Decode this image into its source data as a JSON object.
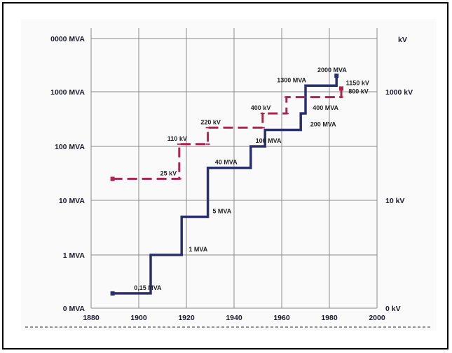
{
  "chart_data": {
    "type": "line",
    "xlim": [
      1880,
      2000
    ],
    "x_ticks": [
      "1880",
      "1900",
      "1920",
      "1940",
      "1960",
      "1980",
      "2000"
    ],
    "y_left_ticks": [
      "0 MVA",
      "1 MVA",
      "10 MVA",
      "100 MVA",
      "1000 MVA",
      "0000 MVA"
    ],
    "y_right_unit": "kV",
    "y_right_ticks": [
      "0 kV",
      "10 kV",
      "1000 kV"
    ],
    "grid": true,
    "series": [
      {
        "values_unit": "MVA",
        "color": "#2c2f6e",
        "style": "solid-step",
        "points": [
          {
            "x": 1889,
            "y": 0.15
          },
          {
            "x": 1905,
            "y": 0.15
          },
          {
            "x": 1905,
            "y": 1
          },
          {
            "x": 1918,
            "y": 1
          },
          {
            "x": 1918,
            "y": 5
          },
          {
            "x": 1929,
            "y": 5
          },
          {
            "x": 1929,
            "y": 40
          },
          {
            "x": 1947,
            "y": 40
          },
          {
            "x": 1947,
            "y": 100
          },
          {
            "x": 1953,
            "y": 100
          },
          {
            "x": 1953,
            "y": 200
          },
          {
            "x": 1968,
            "y": 200
          },
          {
            "x": 1968,
            "y": 400
          },
          {
            "x": 1970,
            "y": 400
          },
          {
            "x": 1970,
            "y": 1300
          },
          {
            "x": 1983,
            "y": 1300
          },
          {
            "x": 1983,
            "y": 2000
          }
        ]
      },
      {
        "values_unit": "kV",
        "color": "#b0234f",
        "style": "dashed-step",
        "points": [
          {
            "x": 1889,
            "y": 25
          },
          {
            "x": 1915,
            "y": 25
          },
          {
            "x": 1917,
            "y": 25
          },
          {
            "x": 1917,
            "y": 110
          },
          {
            "x": 1929,
            "y": 110
          },
          {
            "x": 1929,
            "y": 220
          },
          {
            "x": 1952,
            "y": 220
          },
          {
            "x": 1952,
            "y": 400
          },
          {
            "x": 1962,
            "y": 400
          },
          {
            "x": 1962,
            "y": 800
          },
          {
            "x": 1971,
            "y": 800
          },
          {
            "x": 1985,
            "y": 800
          },
          {
            "x": 1985,
            "y": 1150
          }
        ]
      }
    ],
    "annotations": [
      {
        "text": "0,15 MVA",
        "x": 1898,
        "y": 0.15
      },
      {
        "text": "1 MVA",
        "x": 1921,
        "y": 1
      },
      {
        "text": "5 MVA",
        "x": 1931,
        "y": 5
      },
      {
        "text": "40 MVA",
        "x": 1932,
        "y": 40
      },
      {
        "text": "100 MVA",
        "x": 1949,
        "y": 100
      },
      {
        "text": "200 MVA",
        "x": 1972,
        "y": 200
      },
      {
        "text": "400 MVA",
        "x": 1973,
        "y": 400
      },
      {
        "text": "1300 MVA",
        "x": 1958,
        "y": 1300
      },
      {
        "text": "2000 MVA",
        "x": 1975,
        "y": 2000
      },
      {
        "text": "25 kV",
        "x": 1909,
        "y": 25
      },
      {
        "text": "110 kV",
        "x": 1912,
        "y": 110
      },
      {
        "text": "220 kV",
        "x": 1926,
        "y": 220
      },
      {
        "text": "400 kV",
        "x": 1947,
        "y": 400
      },
      {
        "text": "800 kV",
        "x": 1988,
        "y": 800
      },
      {
        "text": "1150 kV",
        "x": 1987,
        "y": 1150
      }
    ]
  }
}
